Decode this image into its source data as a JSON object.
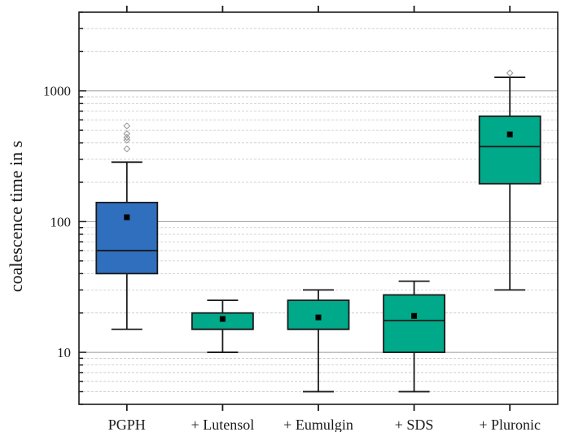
{
  "chart_data": {
    "type": "box",
    "title": "",
    "xlabel": "",
    "ylabel": "coalescence time in s",
    "y_scale": "log",
    "ylim": [
      4,
      4000
    ],
    "y_ticks": [
      {
        "value": 10,
        "label": "10"
      },
      {
        "value": 100,
        "label": "100"
      },
      {
        "value": 1000,
        "label": "1000"
      }
    ],
    "grid": "horizontal major and minor",
    "legend": "none",
    "categories": [
      "PGPH",
      "+ Lutensol",
      "+ Eumulgin",
      "+ SDS",
      "+ Pluronic"
    ],
    "boxes": [
      {
        "category": "PGPH",
        "whisker_low": 15,
        "q1": 40,
        "median": 60,
        "q3": 140,
        "whisker_high": 285,
        "mean": 108,
        "outliers": [
          360,
          420,
          440,
          470,
          540
        ],
        "color": "#2f6fbe"
      },
      {
        "category": "+ Lutensol",
        "whisker_low": 10,
        "q1": 15,
        "median": 15,
        "q3": 20,
        "whisker_high": 25,
        "mean": 18,
        "outliers": [],
        "color": "#00a98a"
      },
      {
        "category": "+ Eumulgin",
        "whisker_low": 5,
        "q1": 15,
        "median": 15,
        "q3": 25,
        "whisker_high": 30,
        "mean": 18.5,
        "outliers": [],
        "color": "#00a98a"
      },
      {
        "category": "+ SDS",
        "whisker_low": 5,
        "q1": 10,
        "median": 17.5,
        "q3": 27.5,
        "whisker_high": 35,
        "mean": 19,
        "outliers": [],
        "color": "#00a98a"
      },
      {
        "category": "+ Pluronic",
        "whisker_low": 30,
        "q1": 195,
        "median": 375,
        "q3": 640,
        "whisker_high": 1270,
        "mean": 465,
        "outliers": [
          1370
        ],
        "color": "#00a98a"
      }
    ],
    "colors": {
      "axis": "#1a1a1a",
      "grid": "#9a9a9a",
      "minor_grid": "#c8c8c8",
      "mean_marker": "#000000",
      "outlier": "#9a9a9a"
    }
  }
}
